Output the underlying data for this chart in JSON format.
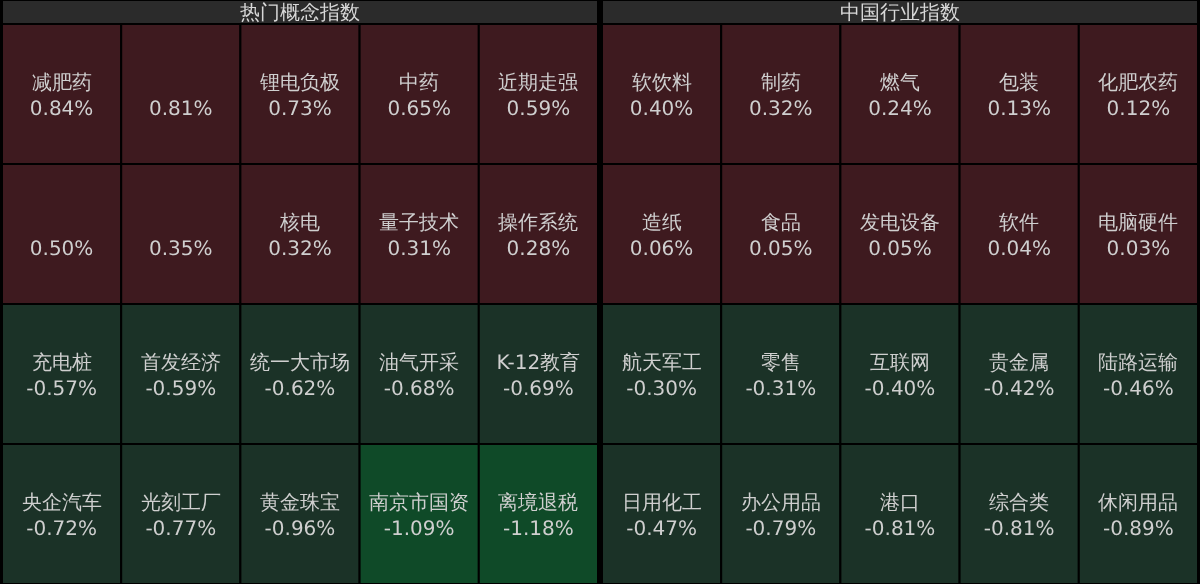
{
  "chart_data": [
    {
      "type": "other",
      "title": "热门概念指数",
      "categories": [
        "减肥药",
        null,
        "锂电负极",
        "中药",
        "近期走强",
        null,
        null,
        "核电",
        "量子技术",
        "操作系统",
        "充电桩",
        "首发经济",
        "统一大市场",
        "油气开采",
        "K-12教育",
        "央企汽车",
        "光刻工厂",
        "黄金珠宝",
        "南京市国资",
        "离境退税"
      ],
      "values": [
        0.84,
        0.81,
        0.73,
        0.65,
        0.59,
        0.5,
        0.35,
        0.32,
        0.31,
        0.28,
        -0.57,
        -0.59,
        -0.62,
        -0.68,
        -0.69,
        -0.72,
        -0.77,
        -0.96,
        -1.09,
        -1.18
      ],
      "value_labels": [
        "0.84%",
        "0.81%",
        "0.73%",
        "0.65%",
        "0.59%",
        "0.50%",
        "0.35%",
        "0.32%",
        "0.31%",
        "0.28%",
        "-0.57%",
        "-0.59%",
        "-0.62%",
        "-0.68%",
        "-0.69%",
        "-0.72%",
        "-0.77%",
        "-0.96%",
        "-1.09%",
        "-1.18%"
      ]
    },
    {
      "type": "other",
      "title": "中国行业指数",
      "categories": [
        "软饮料",
        "制药",
        "燃气",
        "包装",
        "化肥农药",
        "造纸",
        "食品",
        "发电设备",
        "软件",
        "电脑硬件",
        "航天军工",
        "零售",
        "互联网",
        "贵金属",
        "陆路运输",
        "日用化工",
        "办公用品",
        "港口",
        "综合类",
        "休闲用品"
      ],
      "values": [
        0.4,
        0.32,
        0.24,
        0.13,
        0.12,
        0.06,
        0.05,
        0.05,
        0.04,
        0.03,
        -0.3,
        -0.31,
        -0.4,
        -0.42,
        -0.46,
        -0.47,
        -0.79,
        -0.81,
        -0.81,
        -0.89
      ],
      "value_labels": [
        "0.40%",
        "0.32%",
        "0.24%",
        "0.13%",
        "0.12%",
        "0.06%",
        "0.05%",
        "0.05%",
        "0.04%",
        "0.03%",
        "-0.30%",
        "-0.31%",
        "-0.40%",
        "-0.42%",
        "-0.46%",
        "-0.47%",
        "-0.79%",
        "-0.81%",
        "-0.81%",
        "-0.89%"
      ]
    }
  ]
}
